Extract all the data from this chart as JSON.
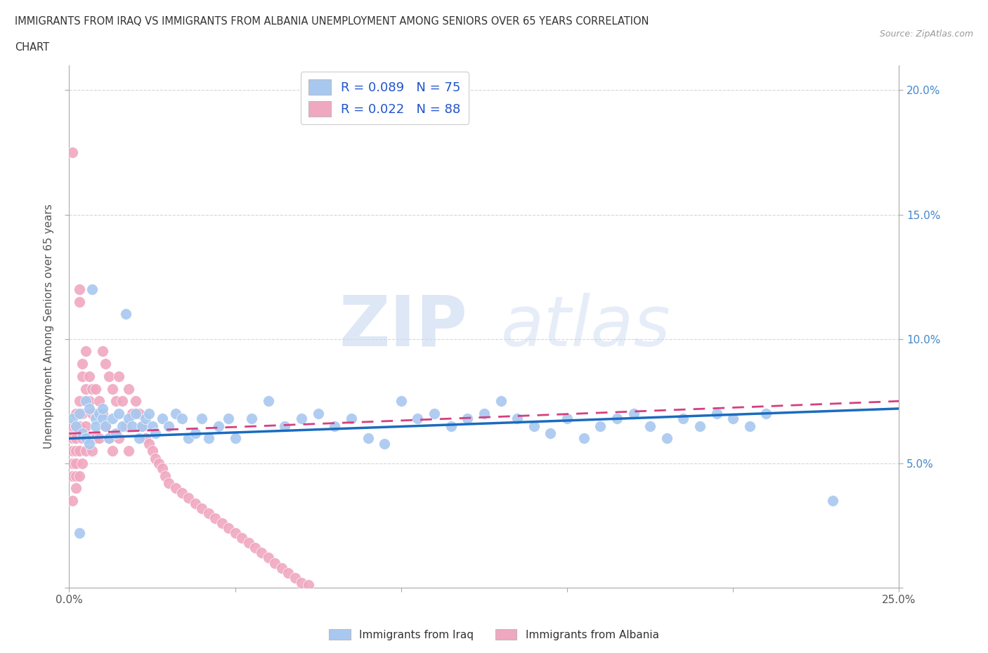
{
  "title_line1": "IMMIGRANTS FROM IRAQ VS IMMIGRANTS FROM ALBANIA UNEMPLOYMENT AMONG SENIORS OVER 65 YEARS CORRELATION",
  "title_line2": "CHART",
  "source": "Source: ZipAtlas.com",
  "ylabel": "Unemployment Among Seniors over 65 years",
  "xlim": [
    0.0,
    0.25
  ],
  "ylim": [
    0.0,
    0.21
  ],
  "iraq_R": 0.089,
  "iraq_N": 75,
  "albania_R": 0.022,
  "albania_N": 88,
  "iraq_color": "#a8c8f0",
  "albania_color": "#f0a8c0",
  "iraq_line_color": "#1a6bbf",
  "albania_line_color": "#d44080",
  "watermark_color": "#d0ddf0",
  "iraq_x": [
    0.001,
    0.002,
    0.003,
    0.004,
    0.005,
    0.005,
    0.006,
    0.006,
    0.007,
    0.008,
    0.008,
    0.009,
    0.01,
    0.01,
    0.011,
    0.012,
    0.013,
    0.014,
    0.015,
    0.016,
    0.017,
    0.018,
    0.019,
    0.02,
    0.021,
    0.022,
    0.023,
    0.024,
    0.025,
    0.026,
    0.028,
    0.03,
    0.032,
    0.034,
    0.036,
    0.038,
    0.04,
    0.042,
    0.045,
    0.048,
    0.05,
    0.055,
    0.06,
    0.065,
    0.07,
    0.075,
    0.08,
    0.085,
    0.09,
    0.095,
    0.1,
    0.105,
    0.11,
    0.115,
    0.12,
    0.125,
    0.13,
    0.135,
    0.14,
    0.145,
    0.15,
    0.155,
    0.16,
    0.165,
    0.17,
    0.175,
    0.18,
    0.185,
    0.19,
    0.195,
    0.2,
    0.205,
    0.21,
    0.23,
    0.003
  ],
  "iraq_y": [
    0.068,
    0.065,
    0.07,
    0.062,
    0.075,
    0.06,
    0.072,
    0.058,
    0.12,
    0.068,
    0.065,
    0.07,
    0.068,
    0.072,
    0.065,
    0.06,
    0.068,
    0.062,
    0.07,
    0.065,
    0.11,
    0.068,
    0.065,
    0.07,
    0.06,
    0.065,
    0.068,
    0.07,
    0.065,
    0.062,
    0.068,
    0.065,
    0.07,
    0.068,
    0.06,
    0.062,
    0.068,
    0.06,
    0.065,
    0.068,
    0.06,
    0.068,
    0.075,
    0.065,
    0.068,
    0.07,
    0.065,
    0.068,
    0.06,
    0.058,
    0.075,
    0.068,
    0.07,
    0.065,
    0.068,
    0.07,
    0.075,
    0.068,
    0.065,
    0.062,
    0.068,
    0.06,
    0.065,
    0.068,
    0.07,
    0.065,
    0.06,
    0.068,
    0.065,
    0.07,
    0.068,
    0.065,
    0.07,
    0.035,
    0.022
  ],
  "albania_x": [
    0.001,
    0.001,
    0.001,
    0.001,
    0.001,
    0.001,
    0.001,
    0.002,
    0.002,
    0.002,
    0.002,
    0.002,
    0.002,
    0.002,
    0.003,
    0.003,
    0.003,
    0.003,
    0.003,
    0.003,
    0.004,
    0.004,
    0.004,
    0.004,
    0.004,
    0.005,
    0.005,
    0.005,
    0.005,
    0.006,
    0.006,
    0.006,
    0.007,
    0.007,
    0.007,
    0.008,
    0.008,
    0.008,
    0.009,
    0.009,
    0.01,
    0.01,
    0.011,
    0.011,
    0.012,
    0.012,
    0.013,
    0.013,
    0.014,
    0.015,
    0.015,
    0.016,
    0.017,
    0.018,
    0.018,
    0.019,
    0.02,
    0.021,
    0.022,
    0.023,
    0.024,
    0.025,
    0.026,
    0.027,
    0.028,
    0.029,
    0.03,
    0.032,
    0.034,
    0.036,
    0.038,
    0.04,
    0.042,
    0.044,
    0.046,
    0.048,
    0.05,
    0.052,
    0.054,
    0.056,
    0.058,
    0.06,
    0.062,
    0.064,
    0.066,
    0.068,
    0.07,
    0.072
  ],
  "albania_y": [
    0.175,
    0.065,
    0.06,
    0.055,
    0.05,
    0.045,
    0.035,
    0.07,
    0.065,
    0.06,
    0.055,
    0.05,
    0.045,
    0.04,
    0.12,
    0.115,
    0.075,
    0.065,
    0.055,
    0.045,
    0.09,
    0.085,
    0.07,
    0.06,
    0.05,
    0.095,
    0.08,
    0.065,
    0.055,
    0.085,
    0.075,
    0.06,
    0.08,
    0.07,
    0.055,
    0.08,
    0.07,
    0.06,
    0.075,
    0.06,
    0.095,
    0.07,
    0.09,
    0.065,
    0.085,
    0.06,
    0.08,
    0.055,
    0.075,
    0.085,
    0.06,
    0.075,
    0.065,
    0.08,
    0.055,
    0.07,
    0.075,
    0.07,
    0.065,
    0.06,
    0.058,
    0.055,
    0.052,
    0.05,
    0.048,
    0.045,
    0.042,
    0.04,
    0.038,
    0.036,
    0.034,
    0.032,
    0.03,
    0.028,
    0.026,
    0.024,
    0.022,
    0.02,
    0.018,
    0.016,
    0.014,
    0.012,
    0.01,
    0.008,
    0.006,
    0.004,
    0.002,
    0.001
  ],
  "iraq_line_x": [
    0.0,
    0.25
  ],
  "iraq_line_y": [
    0.06,
    0.072
  ],
  "albania_line_x": [
    0.0,
    0.25
  ],
  "albania_line_y": [
    0.062,
    0.075
  ]
}
